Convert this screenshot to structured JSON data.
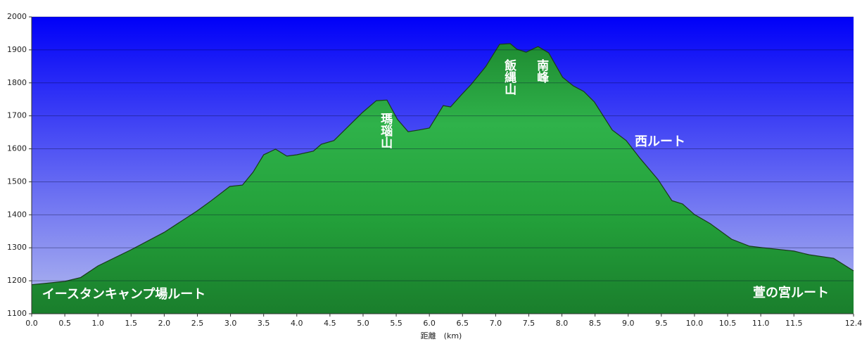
{
  "chart_data": {
    "type": "area",
    "x_label": "距離　(km)",
    "x": [
      0,
      0.5,
      0.74,
      1.0,
      1.5,
      2.0,
      2.49,
      2.71,
      2.99,
      3.18,
      3.34,
      3.5,
      3.68,
      3.85,
      4.0,
      4.25,
      4.37,
      4.56,
      4.99,
      5.2,
      5.36,
      5.52,
      5.68,
      5.84,
      6.0,
      6.21,
      6.32,
      6.48,
      6.63,
      6.85,
      7.06,
      7.22,
      7.32,
      7.46,
      7.64,
      7.8,
      8.01,
      8.17,
      8.33,
      8.49,
      8.76,
      8.97,
      9.18,
      9.45,
      9.66,
      9.82,
      10.0,
      10.24,
      10.56,
      10.83,
      11.04,
      11.5,
      11.73,
      12.1,
      12.4
    ],
    "values": [
      1188,
      1198,
      1210,
      1245,
      1294,
      1347,
      1411,
      1443,
      1486,
      1490,
      1529,
      1582,
      1599,
      1578,
      1582,
      1593,
      1614,
      1625,
      1710,
      1746,
      1748,
      1689,
      1652,
      1657,
      1663,
      1731,
      1727,
      1763,
      1795,
      1849,
      1917,
      1919,
      1902,
      1893,
      1910,
      1891,
      1817,
      1791,
      1774,
      1742,
      1657,
      1625,
      1571,
      1507,
      1443,
      1433,
      1401,
      1373,
      1326,
      1305,
      1300,
      1290,
      1279,
      1268,
      1230
    ],
    "color": "#22a03a",
    "xlim": [
      0,
      12.4
    ],
    "ylim": [
      1100,
      2000
    ],
    "xticks": [
      {
        "value": 0,
        "label": "0.0"
      },
      0.5,
      {
        "value": 1,
        "label": "1.0"
      },
      1.5,
      {
        "value": 2,
        "label": "2.0"
      },
      2.5,
      {
        "value": 3,
        "label": "3.0"
      },
      3.5,
      {
        "value": 4,
        "label": "4.0"
      },
      4.5,
      {
        "value": 5,
        "label": "5.0"
      },
      5.5,
      {
        "value": 6,
        "label": "6.0"
      },
      6.5,
      {
        "value": 7,
        "label": "7.0"
      },
      7.5,
      {
        "value": 8,
        "label": "8.0"
      },
      8.5,
      {
        "value": 9,
        "label": "9.0"
      },
      9.5,
      {
        "value": 10,
        "label": "10.0"
      },
      10.5,
      {
        "value": 11,
        "label": "11.0"
      },
      11.5,
      12.4
    ],
    "yticks": [
      1100,
      1200,
      1300,
      1400,
      1500,
      1600,
      1700,
      1800,
      1900,
      2000
    ],
    "grid": true,
    "annotations": [
      "瑪瑙山",
      "飯縄山",
      "南峰",
      "西ルート",
      "イースタンキャンプ場ルート",
      "萱の宮ルート"
    ]
  }
}
